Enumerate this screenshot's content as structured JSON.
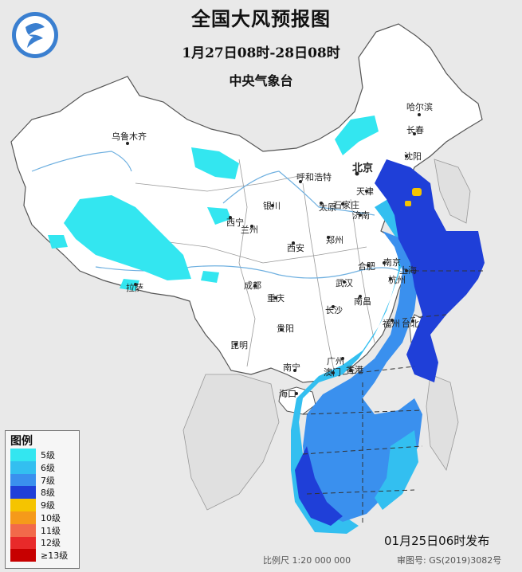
{
  "title": "全国大风预报图",
  "subtitle": "1月27日08时-28日08时",
  "issuer": "中央气象台",
  "issued_time": "01月25日06时发布",
  "scale_text": "比例尺 1:20 000 000",
  "approval_text": "审图号: GS(2019)3082号",
  "legend": {
    "title": "图例",
    "items": [
      {
        "label": "5级",
        "color": "#33e6f0"
      },
      {
        "label": "6级",
        "color": "#33bff0"
      },
      {
        "label": "7级",
        "color": "#3a90ee"
      },
      {
        "label": "8级",
        "color": "#1f3fd8"
      },
      {
        "label": "9级",
        "color": "#f5c400"
      },
      {
        "label": "10级",
        "color": "#f59a1a"
      },
      {
        "label": "11级",
        "color": "#f26a4a"
      },
      {
        "label": "12级",
        "color": "#e82a2a"
      },
      {
        "label": "≥13级",
        "color": "#c70000"
      }
    ]
  },
  "colors": {
    "land": "#ffffff",
    "outside": "#e9e9e9",
    "border": "#555555",
    "river": "#6fb0e0"
  },
  "cities": [
    {
      "name": "乌鲁木齐",
      "bold": false
    },
    {
      "name": "哈尔滨",
      "bold": false
    },
    {
      "name": "长春",
      "bold": false
    },
    {
      "name": "沈阳",
      "bold": false
    },
    {
      "name": "呼和浩特",
      "bold": false
    },
    {
      "name": "北京",
      "bold": true
    },
    {
      "name": "天津",
      "bold": false
    },
    {
      "name": "银川",
      "bold": false
    },
    {
      "name": "太原",
      "bold": false
    },
    {
      "name": "石家庄",
      "bold": false
    },
    {
      "name": "济南",
      "bold": false
    },
    {
      "name": "西宁",
      "bold": false
    },
    {
      "name": "兰州",
      "bold": false
    },
    {
      "name": "郑州",
      "bold": false
    },
    {
      "name": "西安",
      "bold": false
    },
    {
      "name": "合肥",
      "bold": false
    },
    {
      "name": "南京",
      "bold": false
    },
    {
      "name": "上海",
      "bold": false
    },
    {
      "name": "拉萨",
      "bold": false
    },
    {
      "name": "成都",
      "bold": false
    },
    {
      "name": "武汉",
      "bold": false
    },
    {
      "name": "杭州",
      "bold": false
    },
    {
      "name": "重庆",
      "bold": false
    },
    {
      "name": "长沙",
      "bold": false
    },
    {
      "name": "南昌",
      "bold": false
    },
    {
      "name": "福州",
      "bold": false
    },
    {
      "name": "台北",
      "bold": false
    },
    {
      "name": "贵阳",
      "bold": false
    },
    {
      "name": "昆明",
      "bold": false
    },
    {
      "name": "广州",
      "bold": false
    },
    {
      "name": "南宁",
      "bold": false
    },
    {
      "name": "澳门",
      "bold": false
    },
    {
      "name": "香港",
      "bold": false
    },
    {
      "name": "海口",
      "bold": false
    }
  ]
}
